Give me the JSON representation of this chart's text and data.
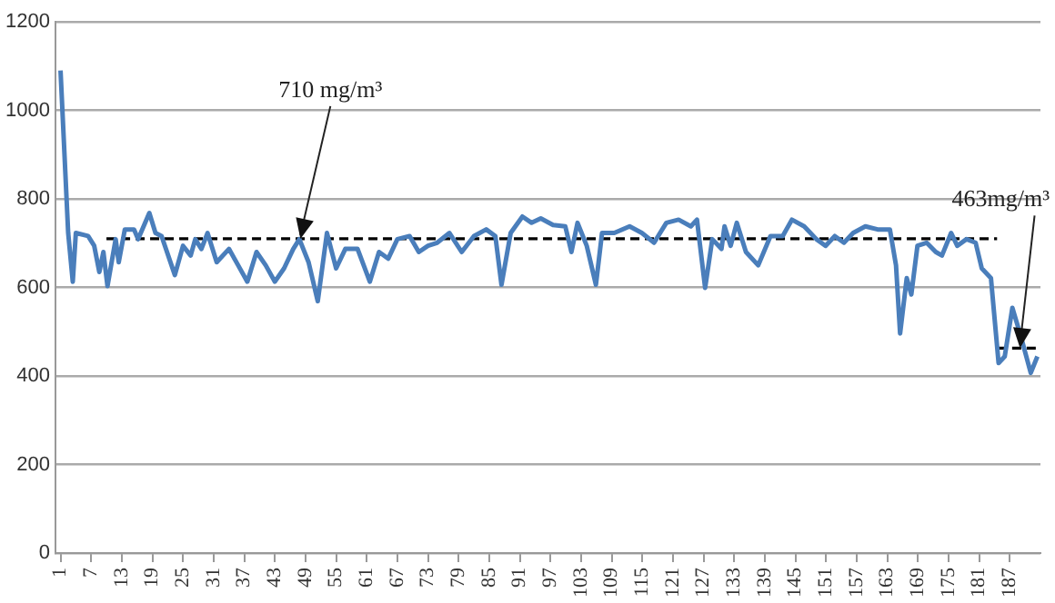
{
  "chart_data": {
    "type": "line",
    "xlim": [
      0,
      193
    ],
    "xticks": [
      1,
      7,
      13,
      19,
      25,
      31,
      37,
      43,
      49,
      55,
      61,
      67,
      73,
      79,
      85,
      91,
      97,
      103,
      109,
      115,
      121,
      127,
      133,
      139,
      145,
      151,
      157,
      163,
      169,
      175,
      181,
      187
    ],
    "ylim": [
      0,
      1200
    ],
    "yticks": [
      0,
      200,
      400,
      600,
      800,
      1000,
      1200
    ],
    "grid": "y",
    "legend": false,
    "marker": "none",
    "series": [
      {
        "color": "#4a7ebb",
        "line_style": "solid",
        "x": [
          1,
          2.5,
          3.4,
          4,
          6.4,
          7.6,
          8.6,
          9.4,
          10.2,
          11.8,
          12.4,
          13.6,
          15.4,
          16.2,
          18.4,
          19.6,
          20.8,
          23.4,
          25,
          26.5,
          27.4,
          28.6,
          29.8,
          31.6,
          34,
          35.8,
          37.6,
          39.4,
          41.2,
          43,
          44.8,
          46.6,
          47.8,
          49.6,
          51.4,
          53.2,
          55,
          56.8,
          59.2,
          61.6,
          63.4,
          65.2,
          67,
          69.4,
          71.2,
          73,
          74.8,
          77.2,
          79.6,
          82,
          84.4,
          86.2,
          87.4,
          89.2,
          91.5,
          93.3,
          95.1,
          97.5,
          99.9,
          101.1,
          102.3,
          104.1,
          105.9,
          107.1,
          109.5,
          112.5,
          114.9,
          117.3,
          119.7,
          122.1,
          124.5,
          125.7,
          127.3,
          128.7,
          130.5,
          131.1,
          132.3,
          133.5,
          135.3,
          137.7,
          140.1,
          142.5,
          144.3,
          146.7,
          149.1,
          150.9,
          152.7,
          154.5,
          156.3,
          158.7,
          161.1,
          163.5,
          164.7,
          165.5,
          166.8,
          167.7,
          168.9,
          170.7,
          172.5,
          173.7,
          175.5,
          176.7,
          178.5,
          180.3,
          181.5,
          183.3,
          184.8,
          186,
          187.5,
          189.2,
          191.1,
          192.4
        ],
        "values": [
          1090,
          723,
          613,
          723,
          716,
          694,
          635,
          680,
          603,
          709,
          657,
          731,
          731,
          709,
          768,
          723,
          716,
          628,
          694,
          672,
          709,
          687,
          723,
          657,
          687,
          650,
          613,
          680,
          650,
          613,
          643,
          687,
          709,
          657,
          569,
          723,
          643,
          687,
          687,
          613,
          680,
          665,
          709,
          716,
          680,
          694,
          701,
          723,
          680,
          716,
          731,
          716,
          606,
          723,
          760,
          746,
          756,
          741,
          738,
          680,
          746,
          694,
          606,
          723,
          723,
          738,
          723,
          701,
          746,
          753,
          738,
          753,
          599,
          709,
          687,
          738,
          694,
          746,
          680,
          650,
          716,
          716,
          753,
          738,
          709,
          694,
          716,
          701,
          723,
          738,
          731,
          731,
          650,
          496,
          621,
          584,
          694,
          701,
          680,
          672,
          723,
          694,
          709,
          701,
          643,
          621,
          429,
          444,
          554,
          488,
          407,
          444
        ]
      },
      {
        "color": "#000000",
        "line_style": "dashed",
        "x": [
          10,
          184.5
        ],
        "values": [
          710,
          710
        ]
      },
      {
        "color": "#000000",
        "line_style": "dashed",
        "x": [
          184.6,
          192.4
        ],
        "values": [
          463,
          463
        ]
      }
    ],
    "annotations": [
      {
        "text": "710 mg/m³",
        "x": 48,
        "y": 710
      },
      {
        "text": "463mg/m³",
        "x": 189,
        "y": 463
      }
    ]
  }
}
